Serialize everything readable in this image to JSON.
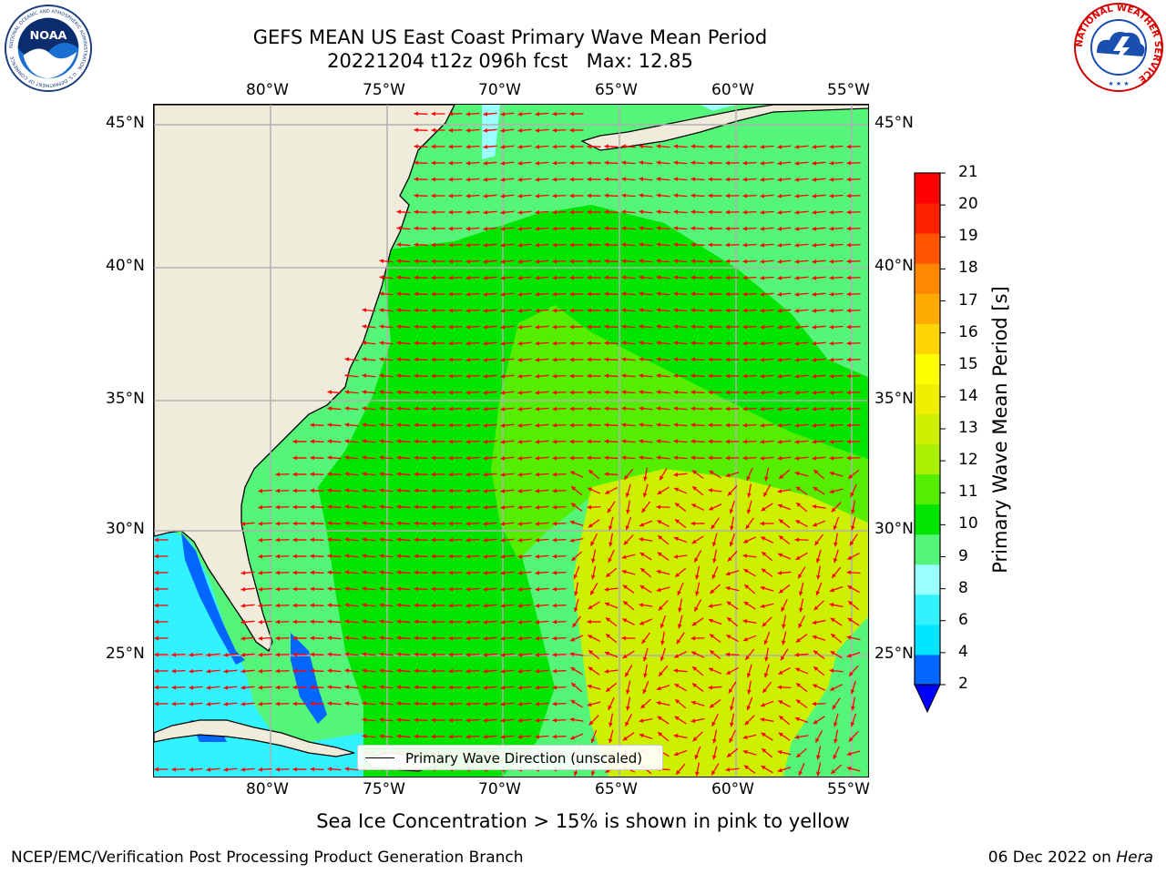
{
  "header": {
    "title_line1": "GEFS MEAN US East Coast Primary Wave Mean Period",
    "title_line2": "20221204 t12z 096h fcst   Max: 12.85"
  },
  "logos": {
    "left": "noaa-logo",
    "left_text": "NOAA",
    "left_ring_text": "NATIONAL OCEANIC AND ATMOSPHERIC ADMINISTRATION · U.S. DEPARTMENT OF COMMERCE",
    "right": "nws-logo",
    "right_ring_text": "NATIONAL WEATHER SERVICE"
  },
  "map": {
    "lon_ticks_top": [
      "80°W",
      "75°W",
      "70°W",
      "65°W",
      "60°W",
      "55°W"
    ],
    "lon_ticks_bottom": [
      "80°W",
      "75°W",
      "70°W",
      "65°W",
      "60°W",
      "55°W"
    ],
    "lat_ticks_left": [
      "45°N",
      "40°N",
      "35°N",
      "30°N",
      "25°N"
    ],
    "lat_ticks_right": [
      "45°N",
      "40°N",
      "35°N",
      "30°N",
      "25°N"
    ],
    "legend_label": "Primary Wave Direction (unscaled)",
    "colors": {
      "land": "#efecdc",
      "grid": "#b0b0b0",
      "arrow": "#ff0000"
    }
  },
  "colorbar": {
    "title": "Primary Wave Mean Period [s]",
    "levels": [
      "21",
      "20",
      "19",
      "18",
      "17",
      "16",
      "15",
      "14",
      "13",
      "12",
      "11",
      "10",
      "9",
      "8",
      "6",
      "4",
      "2"
    ],
    "colors_bottom_to_top": [
      "#0066ff",
      "#00e5ff",
      "#33f2ff",
      "#99ffff",
      "#55f57a",
      "#00e500",
      "#55ee00",
      "#aaee00",
      "#ccf000",
      "#eef000",
      "#ffff00",
      "#ffd400",
      "#ffaa00",
      "#ff8800",
      "#ff5500",
      "#ff2200",
      "#ff0000"
    ],
    "extend_color": "#0000ff"
  },
  "notes": {
    "sea_ice": "Sea Ice Concentration > 15% is shown in pink to yellow"
  },
  "footer": {
    "left": "NCEP/EMC/Verification Post Processing Product Generation Branch",
    "date_text": "06 Dec 2022 on ",
    "host": "Hera"
  }
}
